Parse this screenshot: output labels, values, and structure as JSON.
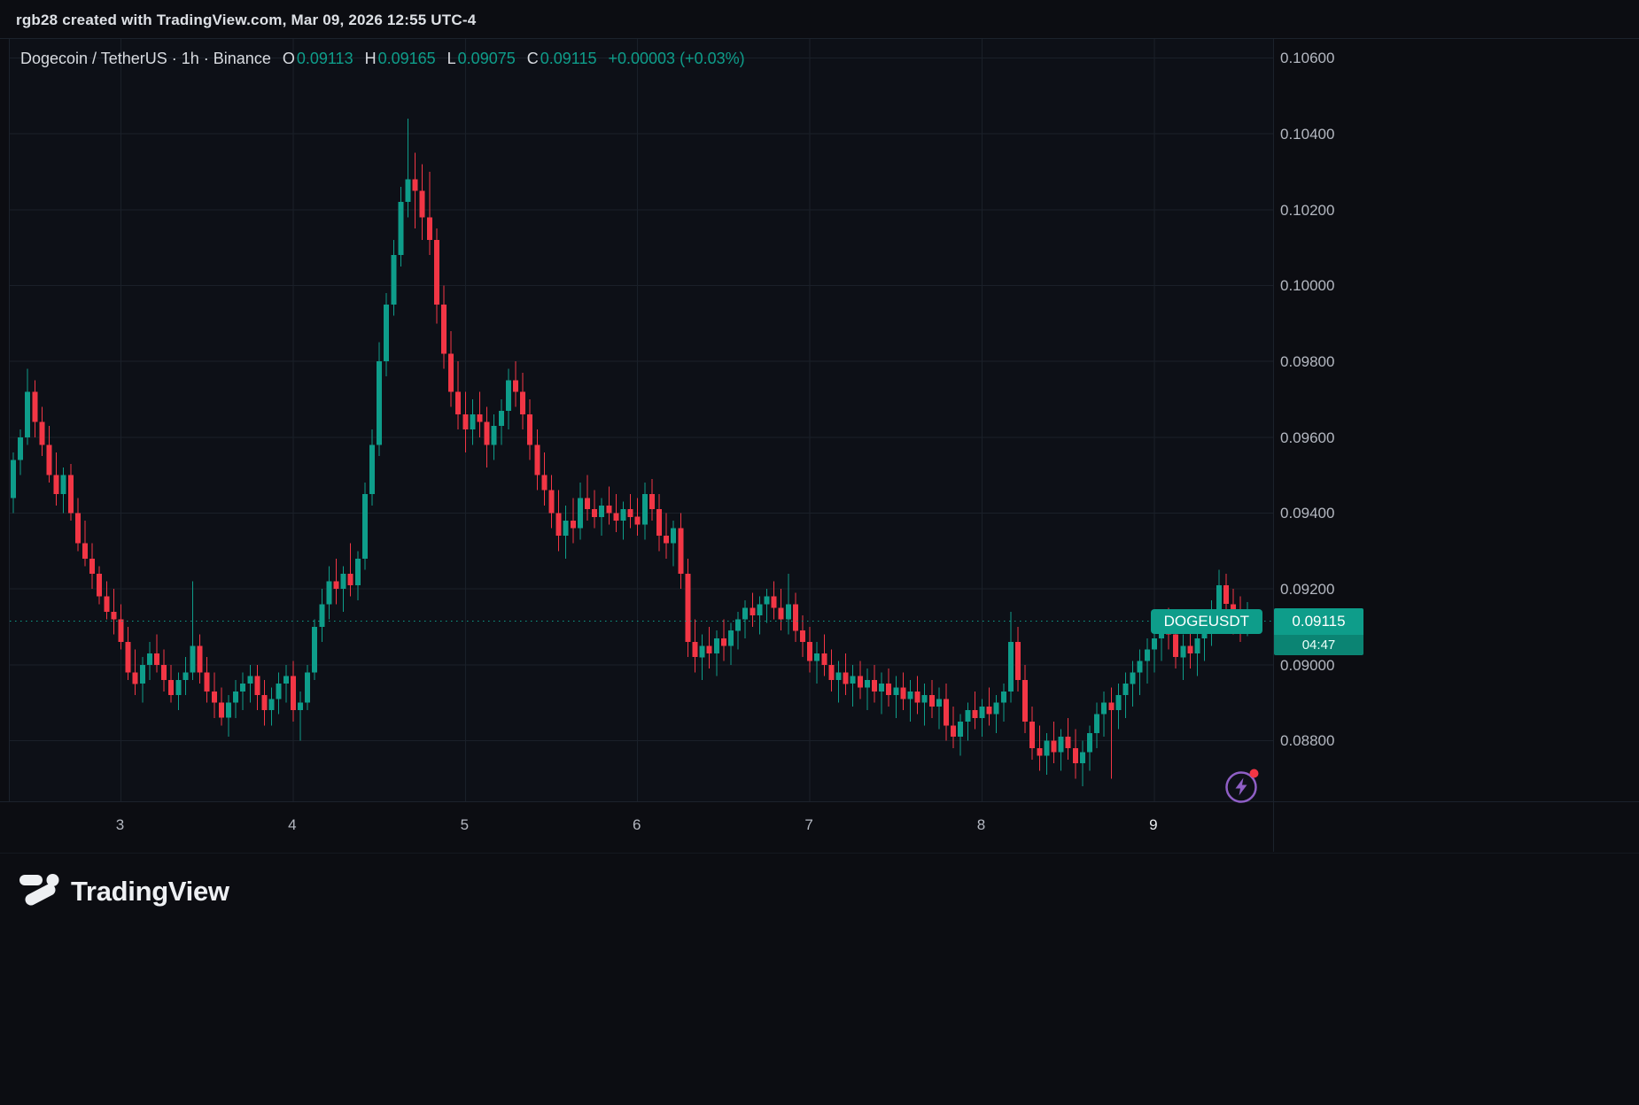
{
  "attribution": "rgb28 created with TradingView.com, Mar 09, 2026 12:55 UTC-4",
  "legend": {
    "title": "Dogecoin / TetherUS · 1h · Binance",
    "ohlc": [
      {
        "label": "O",
        "value": "0.09113"
      },
      {
        "label": "H",
        "value": "0.09165"
      },
      {
        "label": "L",
        "value": "0.09075"
      },
      {
        "label": "C",
        "value": "0.09115"
      }
    ],
    "change": "+0.00003 (+0.03%)"
  },
  "price_marker": {
    "symbol": "DOGEUSDT",
    "price": "0.09115",
    "countdown": "04:47"
  },
  "footer": {
    "brand": "TradingView"
  },
  "icons": {
    "flash": "lightning-bolt-circle-button",
    "flash_dot": "red-notification-dot",
    "brand_mark": "tradingview-logo-mark"
  },
  "colors": {
    "up": "#0e9d8a",
    "down": "#f23645",
    "countdown": "#0b8473",
    "grid": "#1a2029",
    "separator": "#1c222c",
    "bg": "#0c0d12",
    "pane": "#0d1017",
    "axis_text": "#b4b8c1",
    "title_text": "#d8dbe0",
    "logo": "#eef0f3",
    "flash": "#8f5fc6",
    "flash_dot": "#f23645"
  },
  "chart_data": {
    "type": "candlestick",
    "symbol": "Dogecoin / TetherUS (DOGEUSDT)",
    "interval": "1h",
    "exchange": "Binance",
    "current_price": 0.09115,
    "ylim": [
      0.0864,
      0.1065
    ],
    "y_ticks": [
      {
        "label": "0.10600",
        "value": 0.106
      },
      {
        "label": "0.10400",
        "value": 0.104
      },
      {
        "label": "0.10200",
        "value": 0.102
      },
      {
        "label": "0.10000",
        "value": 0.1
      },
      {
        "label": "0.09800",
        "value": 0.098
      },
      {
        "label": "0.09600",
        "value": 0.096
      },
      {
        "label": "0.09400",
        "value": 0.094
      },
      {
        "label": "0.09200",
        "value": 0.092
      },
      {
        "label": "0.09000",
        "value": 0.09
      },
      {
        "label": "0.08800",
        "value": 0.088
      }
    ],
    "x_ticks": [
      {
        "label": "3",
        "index": 15
      },
      {
        "label": "4",
        "index": 39
      },
      {
        "label": "5",
        "index": 63
      },
      {
        "label": "6",
        "index": 87
      },
      {
        "label": "7",
        "index": 111
      },
      {
        "label": "8",
        "index": 135
      },
      {
        "label": "9",
        "index": 159,
        "current": true
      }
    ],
    "candles": [
      [
        0.0944,
        0.0956,
        0.094,
        0.0954
      ],
      [
        0.0954,
        0.0962,
        0.095,
        0.096
      ],
      [
        0.096,
        0.0978,
        0.0958,
        0.0972
      ],
      [
        0.0972,
        0.0975,
        0.096,
        0.0964
      ],
      [
        0.0964,
        0.0968,
        0.0955,
        0.0958
      ],
      [
        0.0958,
        0.0963,
        0.0948,
        0.095
      ],
      [
        0.095,
        0.0956,
        0.0942,
        0.0945
      ],
      [
        0.0945,
        0.0952,
        0.094,
        0.095
      ],
      [
        0.095,
        0.0953,
        0.0938,
        0.094
      ],
      [
        0.094,
        0.0944,
        0.093,
        0.0932
      ],
      [
        0.0932,
        0.0938,
        0.0926,
        0.0928
      ],
      [
        0.0928,
        0.0932,
        0.092,
        0.0924
      ],
      [
        0.0924,
        0.0926,
        0.0916,
        0.0918
      ],
      [
        0.0918,
        0.0922,
        0.0912,
        0.0914
      ],
      [
        0.0914,
        0.092,
        0.0908,
        0.0912
      ],
      [
        0.0912,
        0.0916,
        0.0904,
        0.0906
      ],
      [
        0.0906,
        0.091,
        0.0896,
        0.0898
      ],
      [
        0.0898,
        0.0904,
        0.0892,
        0.0895
      ],
      [
        0.0895,
        0.0902,
        0.089,
        0.09
      ],
      [
        0.09,
        0.0906,
        0.0896,
        0.0903
      ],
      [
        0.0903,
        0.0908,
        0.0898,
        0.09
      ],
      [
        0.09,
        0.0904,
        0.0893,
        0.0896
      ],
      [
        0.0896,
        0.09,
        0.089,
        0.0892
      ],
      [
        0.0892,
        0.0898,
        0.0888,
        0.0896
      ],
      [
        0.0896,
        0.0902,
        0.0892,
        0.0898
      ],
      [
        0.0898,
        0.0922,
        0.0896,
        0.0905
      ],
      [
        0.0905,
        0.0908,
        0.0895,
        0.0898
      ],
      [
        0.0898,
        0.0902,
        0.089,
        0.0893
      ],
      [
        0.0893,
        0.0898,
        0.0886,
        0.089
      ],
      [
        0.089,
        0.0894,
        0.0884,
        0.0886
      ],
      [
        0.0886,
        0.0892,
        0.0881,
        0.089
      ],
      [
        0.089,
        0.0896,
        0.0886,
        0.0893
      ],
      [
        0.0893,
        0.0898,
        0.0888,
        0.0895
      ],
      [
        0.0895,
        0.09,
        0.089,
        0.0897
      ],
      [
        0.0897,
        0.09,
        0.0888,
        0.0892
      ],
      [
        0.0892,
        0.0896,
        0.0884,
        0.0888
      ],
      [
        0.0888,
        0.0894,
        0.0884,
        0.0891
      ],
      [
        0.0891,
        0.0898,
        0.0887,
        0.0895
      ],
      [
        0.0895,
        0.09,
        0.089,
        0.0897
      ],
      [
        0.0897,
        0.0901,
        0.0885,
        0.0888
      ],
      [
        0.0888,
        0.0893,
        0.088,
        0.089
      ],
      [
        0.089,
        0.09,
        0.0888,
        0.0898
      ],
      [
        0.0898,
        0.0912,
        0.0896,
        0.091
      ],
      [
        0.091,
        0.092,
        0.0906,
        0.0916
      ],
      [
        0.0916,
        0.0926,
        0.0912,
        0.0922
      ],
      [
        0.0922,
        0.0928,
        0.0916,
        0.092
      ],
      [
        0.092,
        0.0926,
        0.0914,
        0.0924
      ],
      [
        0.0924,
        0.0932,
        0.0918,
        0.0921
      ],
      [
        0.0921,
        0.093,
        0.0917,
        0.0928
      ],
      [
        0.0928,
        0.0948,
        0.0925,
        0.0945
      ],
      [
        0.0945,
        0.0962,
        0.0942,
        0.0958
      ],
      [
        0.0958,
        0.0985,
        0.0955,
        0.098
      ],
      [
        0.098,
        0.0998,
        0.0976,
        0.0995
      ],
      [
        0.0995,
        0.1012,
        0.0992,
        0.1008
      ],
      [
        0.1008,
        0.1026,
        0.1005,
        0.1022
      ],
      [
        0.1022,
        0.1044,
        0.1018,
        0.1028
      ],
      [
        0.1028,
        0.1035,
        0.1015,
        0.1025
      ],
      [
        0.1025,
        0.1032,
        0.1012,
        0.1018
      ],
      [
        0.1018,
        0.103,
        0.1008,
        0.1012
      ],
      [
        0.1012,
        0.1015,
        0.099,
        0.0995
      ],
      [
        0.0995,
        0.1,
        0.0978,
        0.0982
      ],
      [
        0.0982,
        0.0988,
        0.0968,
        0.0972
      ],
      [
        0.0972,
        0.098,
        0.0962,
        0.0966
      ],
      [
        0.0966,
        0.0972,
        0.0956,
        0.0962
      ],
      [
        0.0962,
        0.097,
        0.0958,
        0.0966
      ],
      [
        0.0966,
        0.0972,
        0.096,
        0.0964
      ],
      [
        0.0964,
        0.0968,
        0.0952,
        0.0958
      ],
      [
        0.0958,
        0.0966,
        0.0954,
        0.0963
      ],
      [
        0.0963,
        0.097,
        0.0958,
        0.0967
      ],
      [
        0.0967,
        0.0978,
        0.0962,
        0.0975
      ],
      [
        0.0975,
        0.098,
        0.0968,
        0.0972
      ],
      [
        0.0972,
        0.0977,
        0.0962,
        0.0966
      ],
      [
        0.0966,
        0.097,
        0.0954,
        0.0958
      ],
      [
        0.0958,
        0.0962,
        0.0946,
        0.095
      ],
      [
        0.095,
        0.0956,
        0.0942,
        0.0946
      ],
      [
        0.0946,
        0.095,
        0.0936,
        0.094
      ],
      [
        0.094,
        0.0946,
        0.093,
        0.0934
      ],
      [
        0.0934,
        0.0942,
        0.0928,
        0.0938
      ],
      [
        0.0938,
        0.0944,
        0.0932,
        0.0936
      ],
      [
        0.0936,
        0.0948,
        0.0933,
        0.0944
      ],
      [
        0.0944,
        0.095,
        0.0938,
        0.0941
      ],
      [
        0.0941,
        0.0946,
        0.0936,
        0.0939
      ],
      [
        0.0939,
        0.0944,
        0.0934,
        0.0942
      ],
      [
        0.0942,
        0.0947,
        0.0937,
        0.094
      ],
      [
        0.094,
        0.0945,
        0.0935,
        0.0938
      ],
      [
        0.0938,
        0.0943,
        0.0933,
        0.0941
      ],
      [
        0.0941,
        0.0945,
        0.0936,
        0.0939
      ],
      [
        0.0939,
        0.0944,
        0.0934,
        0.0937
      ],
      [
        0.0937,
        0.0948,
        0.0933,
        0.0945
      ],
      [
        0.0945,
        0.0949,
        0.0938,
        0.0941
      ],
      [
        0.0941,
        0.0945,
        0.093,
        0.0934
      ],
      [
        0.0934,
        0.094,
        0.0928,
        0.0932
      ],
      [
        0.0932,
        0.0938,
        0.0926,
        0.0936
      ],
      [
        0.0936,
        0.094,
        0.092,
        0.0924
      ],
      [
        0.0924,
        0.0928,
        0.0902,
        0.0906
      ],
      [
        0.0906,
        0.0912,
        0.0898,
        0.0902
      ],
      [
        0.0902,
        0.0908,
        0.0896,
        0.0905
      ],
      [
        0.0905,
        0.091,
        0.0899,
        0.0903
      ],
      [
        0.0903,
        0.0909,
        0.0897,
        0.0907
      ],
      [
        0.0907,
        0.0912,
        0.0901,
        0.0905
      ],
      [
        0.0905,
        0.0911,
        0.09,
        0.0909
      ],
      [
        0.0909,
        0.0914,
        0.0904,
        0.0912
      ],
      [
        0.0912,
        0.0917,
        0.0907,
        0.0915
      ],
      [
        0.0915,
        0.0919,
        0.091,
        0.0913
      ],
      [
        0.0913,
        0.0918,
        0.0908,
        0.0916
      ],
      [
        0.0916,
        0.092,
        0.0911,
        0.0918
      ],
      [
        0.0918,
        0.0922,
        0.0912,
        0.0915
      ],
      [
        0.0915,
        0.092,
        0.0909,
        0.0912
      ],
      [
        0.0912,
        0.0924,
        0.0908,
        0.0916
      ],
      [
        0.0916,
        0.0919,
        0.0906,
        0.0909
      ],
      [
        0.0909,
        0.0913,
        0.0902,
        0.0906
      ],
      [
        0.0906,
        0.091,
        0.0898,
        0.0901
      ],
      [
        0.0901,
        0.0906,
        0.0895,
        0.0903
      ],
      [
        0.0903,
        0.0908,
        0.0897,
        0.09
      ],
      [
        0.09,
        0.0904,
        0.0893,
        0.0896
      ],
      [
        0.0896,
        0.0901,
        0.089,
        0.0898
      ],
      [
        0.0898,
        0.0903,
        0.0892,
        0.0895
      ],
      [
        0.0895,
        0.09,
        0.0889,
        0.0897
      ],
      [
        0.0897,
        0.0901,
        0.0891,
        0.0894
      ],
      [
        0.0894,
        0.0899,
        0.0888,
        0.0896
      ],
      [
        0.0896,
        0.09,
        0.089,
        0.0893
      ],
      [
        0.0893,
        0.0898,
        0.0887,
        0.0895
      ],
      [
        0.0895,
        0.0899,
        0.0889,
        0.0892
      ],
      [
        0.0892,
        0.0897,
        0.0886,
        0.0894
      ],
      [
        0.0894,
        0.0898,
        0.0888,
        0.0891
      ],
      [
        0.0891,
        0.0896,
        0.0885,
        0.0893
      ],
      [
        0.0893,
        0.0897,
        0.0887,
        0.089
      ],
      [
        0.089,
        0.0895,
        0.0884,
        0.0892
      ],
      [
        0.0892,
        0.0896,
        0.0886,
        0.0889
      ],
      [
        0.0889,
        0.0894,
        0.0883,
        0.0891
      ],
      [
        0.0891,
        0.0895,
        0.088,
        0.0884
      ],
      [
        0.0884,
        0.0889,
        0.0878,
        0.0881
      ],
      [
        0.0881,
        0.0887,
        0.0876,
        0.0885
      ],
      [
        0.0885,
        0.089,
        0.088,
        0.0888
      ],
      [
        0.0888,
        0.0893,
        0.0883,
        0.0886
      ],
      [
        0.0886,
        0.0891,
        0.0881,
        0.0889
      ],
      [
        0.0889,
        0.0894,
        0.0884,
        0.0887
      ],
      [
        0.0887,
        0.0892,
        0.0882,
        0.089
      ],
      [
        0.089,
        0.0895,
        0.0885,
        0.0893
      ],
      [
        0.0893,
        0.0914,
        0.089,
        0.0906
      ],
      [
        0.0906,
        0.091,
        0.0893,
        0.0896
      ],
      [
        0.0896,
        0.09,
        0.0882,
        0.0885
      ],
      [
        0.0885,
        0.0889,
        0.0875,
        0.0878
      ],
      [
        0.0878,
        0.0884,
        0.0872,
        0.0876
      ],
      [
        0.0876,
        0.0882,
        0.0871,
        0.088
      ],
      [
        0.088,
        0.0885,
        0.0874,
        0.0877
      ],
      [
        0.0877,
        0.0883,
        0.0872,
        0.0881
      ],
      [
        0.0881,
        0.0886,
        0.0875,
        0.0878
      ],
      [
        0.0878,
        0.0883,
        0.087,
        0.0874
      ],
      [
        0.0874,
        0.088,
        0.0868,
        0.0877
      ],
      [
        0.0877,
        0.0884,
        0.0872,
        0.0882
      ],
      [
        0.0882,
        0.089,
        0.0878,
        0.0887
      ],
      [
        0.0887,
        0.0893,
        0.0881,
        0.089
      ],
      [
        0.089,
        0.0894,
        0.087,
        0.0888
      ],
      [
        0.0888,
        0.0895,
        0.0883,
        0.0892
      ],
      [
        0.0892,
        0.0898,
        0.0886,
        0.0895
      ],
      [
        0.0895,
        0.0901,
        0.0889,
        0.0898
      ],
      [
        0.0898,
        0.0904,
        0.0892,
        0.0901
      ],
      [
        0.0901,
        0.0907,
        0.0895,
        0.0904
      ],
      [
        0.0904,
        0.091,
        0.0898,
        0.0907
      ],
      [
        0.0907,
        0.0913,
        0.0901,
        0.091
      ],
      [
        0.091,
        0.0915,
        0.0904,
        0.0908
      ],
      [
        0.0908,
        0.0913,
        0.0899,
        0.0902
      ],
      [
        0.0902,
        0.0908,
        0.0896,
        0.0905
      ],
      [
        0.0905,
        0.0911,
        0.0899,
        0.0903
      ],
      [
        0.0903,
        0.0909,
        0.0897,
        0.0907
      ],
      [
        0.0907,
        0.0913,
        0.0901,
        0.0911
      ],
      [
        0.0911,
        0.0917,
        0.0905,
        0.0914
      ],
      [
        0.0914,
        0.0925,
        0.0909,
        0.0921
      ],
      [
        0.0921,
        0.0924,
        0.0913,
        0.0916
      ],
      [
        0.0916,
        0.092,
        0.0908,
        0.0912
      ],
      [
        0.0912,
        0.0918,
        0.0906,
        0.0911
      ],
      [
        0.09113,
        0.09165,
        0.09075,
        0.09115
      ]
    ]
  }
}
